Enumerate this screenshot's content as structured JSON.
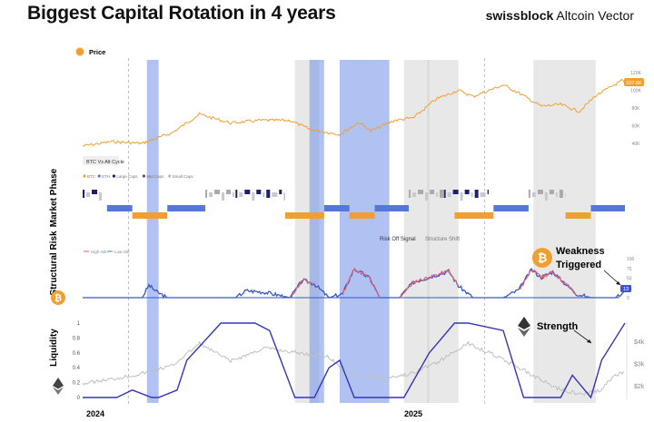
{
  "header": {
    "title": "Biggest Capital Rotation in 4 years",
    "brand_bold": "swissblock",
    "brand_rest": " Altcoin Vector"
  },
  "colors": {
    "orange": "#f0a030",
    "blue": "#5577dd",
    "navy": "#1f1f6b",
    "band_blue": "#6f8fe6",
    "band_gray": "#bdbdbd",
    "red": "#e06070",
    "liq_blue": "#3436b8",
    "liq_gray": "#bfbfbf"
  },
  "chart_data": {
    "type": "line",
    "x_range": [
      "2023-11-15",
      "2025-05-25"
    ],
    "x_ticks": [
      "2024",
      "2025"
    ],
    "highlight_bands": [
      {
        "start": "2024-01-20",
        "end": "2024-02-01",
        "color": "blue"
      },
      {
        "start": "2024-06-20",
        "end": "2024-07-15",
        "color": "gray"
      },
      {
        "start": "2024-07-05",
        "end": "2024-07-20",
        "color": "blue"
      },
      {
        "start": "2024-08-05",
        "end": "2024-09-25",
        "color": "blue"
      },
      {
        "start": "2024-10-10",
        "end": "2024-11-05",
        "color": "gray"
      },
      {
        "start": "2024-11-03",
        "end": "2024-12-05",
        "color": "gray"
      },
      {
        "start": "2025-02-20",
        "end": "2025-04-25",
        "color": "gray"
      }
    ],
    "price": {
      "legend_label": "Price",
      "axis_labels": [
        "120K",
        "100K",
        "80K",
        "60K",
        "40K"
      ],
      "axis_values": [
        120000,
        100000,
        80000,
        60000,
        40000
      ],
      "current_label": "107.6K",
      "x": [
        "2023-11-15",
        "2023-12-15",
        "2024-01-15",
        "2024-02-15",
        "2024-03-14",
        "2024-04-15",
        "2024-05-15",
        "2024-06-15",
        "2024-07-05",
        "2024-08-05",
        "2024-08-25",
        "2024-09-06",
        "2024-09-30",
        "2024-10-20",
        "2024-11-12",
        "2024-12-05",
        "2024-12-20",
        "2025-01-20",
        "2025-02-05",
        "2025-02-28",
        "2025-03-20",
        "2025-04-08",
        "2025-04-25",
        "2025-05-22",
        "2025-05-25"
      ],
      "values": [
        37000,
        42000,
        40000,
        52000,
        73000,
        63000,
        66000,
        66000,
        56000,
        50000,
        64000,
        54000,
        66000,
        69000,
        90000,
        100000,
        93000,
        106000,
        97000,
        82000,
        84000,
        76000,
        94000,
        111000,
        107600
      ]
    },
    "market_phase": {
      "title": "Market Phase",
      "panel_label": "BTC Vs Alt Cycle",
      "legend": [
        "BTC",
        "ETH",
        "Large Caps",
        "Mid Caps",
        "Small Caps"
      ],
      "legend_colors": [
        "#f0a030",
        "#5577dd",
        "#1f1f6b",
        "#555577",
        "#bbbbbb"
      ],
      "segments": [
        {
          "start": "2023-11-15",
          "end": "2023-12-05",
          "level": 0,
          "cls": "navy"
        },
        {
          "start": "2023-12-10",
          "end": "2024-01-05",
          "level": 1,
          "cls": "blue"
        },
        {
          "start": "2024-01-05",
          "end": "2024-02-10",
          "level": 2,
          "cls": "orange"
        },
        {
          "start": "2024-02-10",
          "end": "2024-03-20",
          "level": 1,
          "cls": "blue"
        },
        {
          "start": "2024-03-20",
          "end": "2024-04-20",
          "level": 0,
          "cls": "gray"
        },
        {
          "start": "2024-04-20",
          "end": "2024-06-10",
          "level": 0,
          "cls": "navy"
        },
        {
          "start": "2024-06-10",
          "end": "2024-07-20",
          "level": 2,
          "cls": "orange"
        },
        {
          "start": "2024-07-20",
          "end": "2024-08-15",
          "level": 1,
          "cls": "blue"
        },
        {
          "start": "2024-08-15",
          "end": "2024-09-10",
          "level": 2,
          "cls": "orange"
        },
        {
          "start": "2024-09-10",
          "end": "2024-10-15",
          "level": 1,
          "cls": "blue"
        },
        {
          "start": "2024-10-15",
          "end": "2024-11-20",
          "level": 0,
          "cls": "gray"
        },
        {
          "start": "2024-11-20",
          "end": "2025-01-05",
          "level": 0,
          "cls": "navy"
        },
        {
          "start": "2024-12-01",
          "end": "2025-01-10",
          "level": 2,
          "cls": "orange"
        },
        {
          "start": "2025-01-10",
          "end": "2025-02-15",
          "level": 1,
          "cls": "blue"
        },
        {
          "start": "2025-02-15",
          "end": "2025-03-25",
          "level": 0,
          "cls": "gray"
        },
        {
          "start": "2025-03-25",
          "end": "2025-04-20",
          "level": 2,
          "cls": "orange"
        },
        {
          "start": "2025-04-20",
          "end": "2025-05-25",
          "level": 1,
          "cls": "blue"
        }
      ]
    },
    "structural_risk": {
      "title": "Structural Risk",
      "legend": [
        "High risk",
        "Low risk"
      ],
      "annotations": [
        "Risk Off Signal",
        "Structure Shift"
      ],
      "axis_labels": [
        "100",
        "75",
        "50",
        "25",
        "0"
      ],
      "current_label": "13",
      "callout": "Weakness Triggered",
      "x": [
        "2023-11-15",
        "2024-01-15",
        "2024-01-22",
        "2024-01-30",
        "2024-02-10",
        "2024-04-20",
        "2024-05-01",
        "2024-05-20",
        "2024-06-15",
        "2024-06-28",
        "2024-07-10",
        "2024-07-25",
        "2024-08-08",
        "2024-08-20",
        "2024-09-05",
        "2024-09-15",
        "2024-10-05",
        "2024-10-20",
        "2024-11-08",
        "2024-11-25",
        "2024-12-05",
        "2024-12-20",
        "2025-01-20",
        "2025-02-05",
        "2025-02-18",
        "2025-02-28",
        "2025-03-12",
        "2025-03-22",
        "2025-04-05",
        "2025-04-20",
        "2025-05-15",
        "2025-05-25"
      ],
      "values": [
        0,
        0,
        32,
        15,
        0,
        0,
        18,
        14,
        0,
        45,
        35,
        0,
        10,
        74,
        50,
        0,
        0,
        40,
        55,
        68,
        30,
        0,
        0,
        20,
        72,
        52,
        66,
        42,
        10,
        0,
        0,
        13
      ]
    },
    "liquidity": {
      "title": "Liquidity",
      "left_axis": [
        "1",
        "0.8",
        "0.6",
        "0.4",
        "0.2",
        "0"
      ],
      "right_axis": [
        "$4k",
        "$3k",
        "$2k"
      ],
      "callout": "Strength",
      "series": [
        {
          "name": "",
          "x": [
            "2023-11-15",
            "2023-12-20",
            "2024-01-05",
            "2024-01-25",
            "2024-02-01",
            "2024-02-20",
            "2024-03-01",
            "2024-04-05",
            "2024-04-15",
            "2024-05-10",
            "2024-05-25",
            "2024-06-20",
            "2024-07-10",
            "2024-07-25",
            "2024-08-05",
            "2024-08-20",
            "2024-09-05",
            "2024-10-10",
            "2024-11-05",
            "2024-12-01",
            "2024-12-15",
            "2025-01-20",
            "2025-02-10",
            "2025-03-01",
            "2025-03-20",
            "2025-04-01",
            "2025-04-20",
            "2025-05-01",
            "2025-05-25"
          ],
          "values": [
            0,
            0,
            0.1,
            0,
            0,
            0.1,
            0.5,
            1,
            1,
            1,
            0.9,
            0,
            0,
            0.4,
            0.5,
            0,
            0,
            0,
            0.6,
            1,
            1,
            0.9,
            0,
            0,
            0,
            0.3,
            0,
            0.5,
            1
          ]
        },
        {
          "name": "",
          "x": [
            "2023-11-15",
            "2023-12-15",
            "2024-01-10",
            "2024-02-15",
            "2024-03-14",
            "2024-04-15",
            "2024-05-20",
            "2024-06-20",
            "2024-07-25",
            "2024-08-10",
            "2024-09-15",
            "2024-10-15",
            "2024-11-15",
            "2024-12-15",
            "2025-01-10",
            "2025-02-10",
            "2025-03-15",
            "2025-04-10",
            "2025-04-30",
            "2025-05-15",
            "2025-05-25"
          ],
          "values": [
            2100,
            2300,
            2500,
            2900,
            3900,
            3100,
            3700,
            3500,
            3300,
            2600,
            2350,
            2500,
            3100,
            3900,
            3400,
            2700,
            1900,
            1600,
            1800,
            2500,
            2600
          ]
        }
      ]
    }
  }
}
